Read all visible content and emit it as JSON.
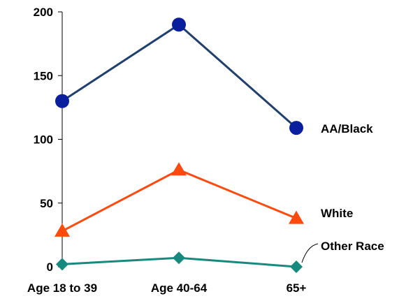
{
  "chart_data": {
    "type": "line",
    "categories": [
      "Age 18 to 39",
      "Age 40-64",
      "65+"
    ],
    "ylim": [
      0,
      200
    ],
    "yticks": [
      0,
      50,
      100,
      150,
      200
    ],
    "grid": false,
    "legend": "inline-right",
    "series": [
      {
        "name": "AA/Black",
        "values": [
          130,
          190,
          109
        ],
        "color": "#1f3f6e",
        "marker": "circle",
        "marker_color": "#0a1f9e"
      },
      {
        "name": "White",
        "values": [
          28,
          76,
          38
        ],
        "color": "#ff4a0d",
        "marker": "triangle",
        "marker_color": "#ff4a0d"
      },
      {
        "name": "Other Race",
        "values": [
          2,
          7,
          0
        ],
        "color": "#178a80",
        "marker": "diamond",
        "marker_color": "#178a80"
      }
    ]
  }
}
